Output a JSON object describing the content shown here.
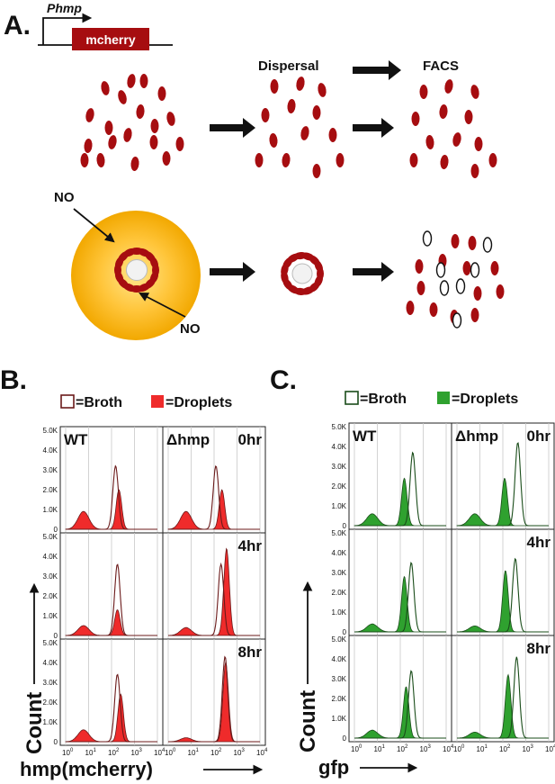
{
  "panel_a": {
    "letter": "A.",
    "promoter": "Phmp",
    "gene": "mcherry",
    "gene_color": "#a60d10",
    "dispersal": "Dispersal",
    "facs": "FACS",
    "no": "NO"
  },
  "legend": {
    "broth": "=Broth",
    "droplets": "=Droplets"
  },
  "panel_b": {
    "letter": "B.",
    "color": "#ef2b2b",
    "outline_color": "#6b1a1a",
    "y_axis_label": "Count",
    "x_axis_label": "hmp(mcherry)"
  },
  "panel_c": {
    "letter": "C.",
    "color": "#2fa12f",
    "outline_color": "#1a4d1a",
    "y_axis_label": "Count",
    "x_axis_label": "gfp"
  },
  "strain_labels": [
    "WT",
    "Δhmp"
  ],
  "time_labels": [
    "0hr",
    "4hr",
    "8hr"
  ],
  "y_ticks": [
    "5.0K",
    "4.0K",
    "3.0K",
    "2.0K",
    "1.0K",
    "0"
  ],
  "x_tick_exponents": [
    "0",
    "1",
    "2",
    "3",
    "4"
  ],
  "chart_data": [
    {
      "type": "histogram",
      "panel": "B",
      "x_scale": "log",
      "xlim": [
        1,
        10000
      ],
      "ylim": [
        0,
        5000
      ],
      "grid": true,
      "series": [
        {
          "name": "Broth",
          "filled": false
        },
        {
          "name": "Droplets",
          "filled": true
        }
      ],
      "facets": [
        {
          "strain": "WT",
          "time": "0hr",
          "broth_peaks": [
            {
              "x": 150,
              "h": 3200
            }
          ],
          "droplet_peaks": [
            {
              "x": 6,
              "h": 900
            },
            {
              "x": 210,
              "h": 2000
            }
          ]
        },
        {
          "strain": "Δhmp",
          "time": "0hr",
          "broth_peaks": [
            {
              "x": 120,
              "h": 3200
            }
          ],
          "droplet_peaks": [
            {
              "x": 6,
              "h": 900
            },
            {
              "x": 220,
              "h": 2000
            }
          ]
        },
        {
          "strain": "WT",
          "time": "4hr",
          "broth_peaks": [
            {
              "x": 180,
              "h": 3600
            }
          ],
          "droplet_peaks": [
            {
              "x": 6,
              "h": 500
            },
            {
              "x": 180,
              "h": 1300
            }
          ]
        },
        {
          "strain": "Δhmp",
          "time": "4hr",
          "broth_peaks": [
            {
              "x": 200,
              "h": 3600
            }
          ],
          "droplet_peaks": [
            {
              "x": 6,
              "h": 400
            },
            {
              "x": 350,
              "h": 4400
            }
          ]
        },
        {
          "strain": "WT",
          "time": "8hr",
          "broth_peaks": [
            {
              "x": 180,
              "h": 3400
            }
          ],
          "droplet_peaks": [
            {
              "x": 6,
              "h": 600
            },
            {
              "x": 250,
              "h": 2400
            }
          ]
        },
        {
          "strain": "Δhmp",
          "time": "8hr",
          "broth_peaks": [
            {
              "x": 300,
              "h": 4300
            }
          ],
          "droplet_peaks": [
            {
              "x": 6,
              "h": 200
            },
            {
              "x": 320,
              "h": 4000
            }
          ]
        }
      ]
    },
    {
      "type": "histogram",
      "panel": "C",
      "x_scale": "log",
      "xlim": [
        1,
        10000
      ],
      "ylim": [
        0,
        5000
      ],
      "grid": true,
      "series": [
        {
          "name": "Broth",
          "filled": false
        },
        {
          "name": "Droplets",
          "filled": true
        }
      ],
      "facets": [
        {
          "strain": "WT",
          "time": "0hr",
          "broth_peaks": [
            {
              "x": 350,
              "h": 3700
            }
          ],
          "droplet_peaks": [
            {
              "x": 6,
              "h": 600
            },
            {
              "x": 150,
              "h": 2400
            }
          ]
        },
        {
          "strain": "Δhmp",
          "time": "0hr",
          "broth_peaks": [
            {
              "x": 450,
              "h": 4200
            }
          ],
          "droplet_peaks": [
            {
              "x": 6,
              "h": 600
            },
            {
              "x": 120,
              "h": 2400
            }
          ]
        },
        {
          "strain": "WT",
          "time": "4hr",
          "broth_peaks": [
            {
              "x": 300,
              "h": 3500
            }
          ],
          "droplet_peaks": [
            {
              "x": 6,
              "h": 400
            },
            {
              "x": 150,
              "h": 2800
            }
          ]
        },
        {
          "strain": "Δhmp",
          "time": "4hr",
          "broth_peaks": [
            {
              "x": 350,
              "h": 3700
            }
          ],
          "droplet_peaks": [
            {
              "x": 6,
              "h": 300
            },
            {
              "x": 130,
              "h": 3100
            }
          ]
        },
        {
          "strain": "WT",
          "time": "8hr",
          "broth_peaks": [
            {
              "x": 300,
              "h": 3400
            }
          ],
          "droplet_peaks": [
            {
              "x": 6,
              "h": 400
            },
            {
              "x": 180,
              "h": 2600
            }
          ]
        },
        {
          "strain": "Δhmp",
          "time": "8hr",
          "broth_peaks": [
            {
              "x": 400,
              "h": 4100
            }
          ],
          "droplet_peaks": [
            {
              "x": 6,
              "h": 300
            },
            {
              "x": 170,
              "h": 3200
            }
          ]
        }
      ]
    }
  ]
}
